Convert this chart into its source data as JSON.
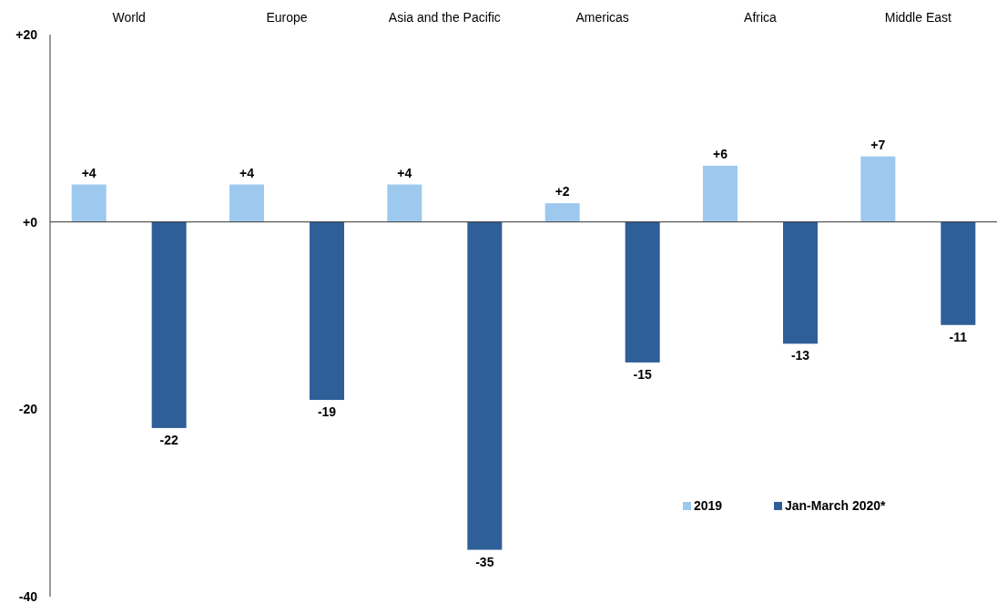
{
  "chart_data": {
    "type": "bar",
    "categories": [
      "World",
      "Europe",
      "Asia and the Pacific",
      "Americas",
      "Africa",
      "Middle East"
    ],
    "series": [
      {
        "name": "2019",
        "color": "#9dc9ef",
        "values": [
          4,
          4,
          4,
          2,
          6,
          7
        ],
        "value_labels": [
          "+4",
          "+4",
          "+4",
          "+2",
          "+6",
          "+7"
        ]
      },
      {
        "name": "Jan-March 2020*",
        "color": "#2f5f98",
        "values": [
          -22,
          -19,
          -35,
          -15,
          -13,
          -11
        ],
        "value_labels": [
          "-22",
          "-19",
          "-35",
          "-15",
          "-13",
          "-11"
        ]
      }
    ],
    "ylim": [
      -40,
      20
    ],
    "yticks": [
      {
        "value": 20,
        "label": "+20"
      },
      {
        "value": 0,
        "label": "+0"
      },
      {
        "value": -20,
        "label": "-20"
      },
      {
        "value": -40,
        "label": "-40"
      }
    ],
    "legend": "bottom right"
  }
}
